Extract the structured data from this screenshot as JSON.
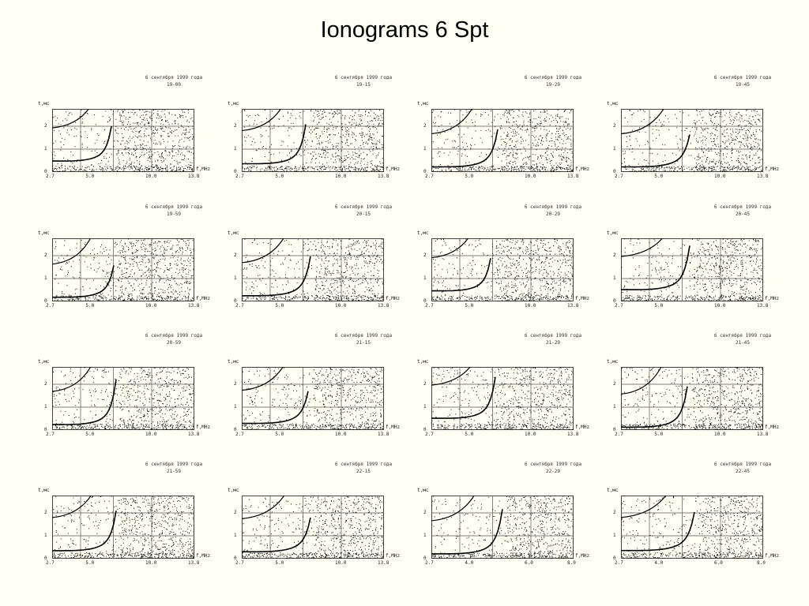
{
  "title": "Ionograms 6 Spt",
  "date_label": "6 сентября 1999 года",
  "y_axis_label": "t,мс",
  "x_axis_label": "f,MHz",
  "y_ticks": [
    "0",
    "1",
    "2"
  ],
  "panels": [
    {
      "time": "19-00",
      "x_ticks": [
        "2.7",
        "5.0",
        "10.0",
        "13.8"
      ]
    },
    {
      "time": "19-15",
      "x_ticks": [
        "2.7",
        "5.0",
        "10.0",
        "13.8"
      ]
    },
    {
      "time": "19-29",
      "x_ticks": [
        "2.7",
        "5.0",
        "10.0",
        "13.8"
      ]
    },
    {
      "time": "19-45",
      "x_ticks": [
        "2.7",
        "5.0",
        "10.0",
        "13.8"
      ]
    },
    {
      "time": "19-59",
      "x_ticks": [
        "2.7",
        "5.0",
        "10.0",
        "13.8"
      ]
    },
    {
      "time": "20-15",
      "x_ticks": [
        "2.7",
        "5.0",
        "10.0",
        "13.8"
      ]
    },
    {
      "time": "20-29",
      "x_ticks": [
        "2.7",
        "5.0",
        "10.0",
        "13.8"
      ]
    },
    {
      "time": "20-45",
      "x_ticks": [
        "2.7",
        "5.0",
        "10.0",
        "13.8"
      ]
    },
    {
      "time": "20-59",
      "x_ticks": [
        "2.7",
        "5.0",
        "10.0",
        "13.8"
      ]
    },
    {
      "time": "21-15",
      "x_ticks": [
        "2.7",
        "5.0",
        "10.0",
        "13.8"
      ]
    },
    {
      "time": "21-29",
      "x_ticks": [
        "2.7",
        "5.0",
        "10.0",
        "13.8"
      ]
    },
    {
      "time": "21-45",
      "x_ticks": [
        "2.7",
        "5.0",
        "10.0",
        "13.8"
      ]
    },
    {
      "time": "21-59",
      "x_ticks": [
        "2.7",
        "5.0",
        "10.0",
        "13.8"
      ]
    },
    {
      "time": "22-15",
      "x_ticks": [
        "2.7",
        "5.0",
        "10.0",
        "13.8"
      ]
    },
    {
      "time": "22-29",
      "x_ticks": [
        "2.7",
        "4.0",
        "6.0",
        "8.0"
      ]
    },
    {
      "time": "22-45",
      "x_ticks": [
        "2.7",
        "4.0",
        "6.0",
        "8.0"
      ]
    }
  ]
}
